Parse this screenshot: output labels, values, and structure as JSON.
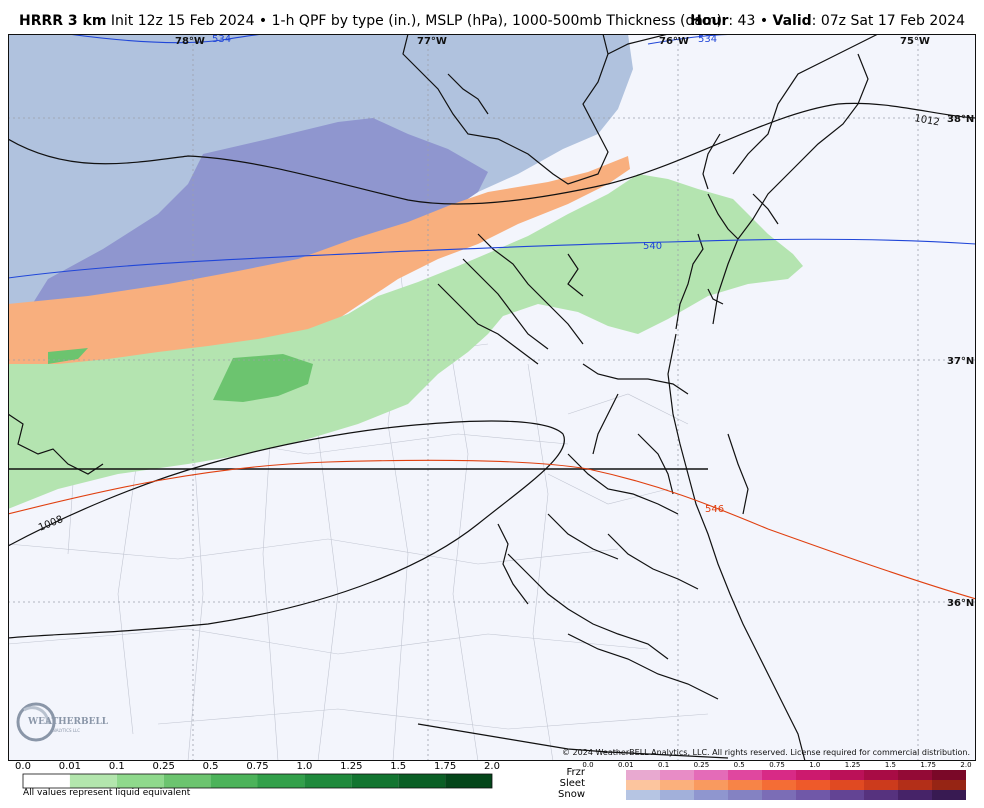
{
  "header": {
    "model": "HRRR 3 km",
    "description": "Init 12z 15 Feb 2024 • 1-h QPF by type (in.), MSLP (hPa), 1000-500mb Thickness (dam)",
    "hour_label": "Hour",
    "hour_value": ": 43 • ",
    "valid_label": "Valid",
    "valid_value": ": 07z Sat 17 Feb 2024"
  },
  "map": {
    "lon_labels": [
      "78°W",
      "77°W",
      "76°W",
      "75°W"
    ],
    "lat_labels": [
      "38°N",
      "37°N",
      "36°N"
    ],
    "isobar_labels": [
      "1012",
      "1008"
    ],
    "thickness_labels": [
      "534",
      "534",
      "540",
      "546"
    ],
    "copyright": "© 2024 WeatherBELL Analytics, LLC. All rights reserved. License required for commercial distribution.",
    "logo_text": "WEATHERBELL",
    "logo_sub": "ANALYTICS LLC"
  },
  "legend": {
    "qpf_ticks": [
      "0.0",
      "0.01",
      "0.1",
      "0.25",
      "0.5",
      "0.75",
      "1.0",
      "1.25",
      "1.5",
      "1.75",
      "2.0"
    ],
    "qpf_colors": [
      "#ffffff",
      "#b3e6ad",
      "#8fd98c",
      "#6cc46f",
      "#4cb35a",
      "#32a04a",
      "#1f8a3c",
      "#127530",
      "#0a5f25",
      "#04461a"
    ],
    "note": "All values represent liquid equivalent",
    "ptype_ticks": [
      "0.0",
      "0.01",
      "0.1",
      "0.25",
      "0.5",
      "0.75",
      "1.0",
      "1.25",
      "1.5",
      "1.75",
      "2.0"
    ],
    "ptype_names": [
      "Frzr",
      "Sleet",
      "Snow"
    ],
    "frzr_colors": [
      "#e8a9d0",
      "#e88cc6",
      "#e46bb8",
      "#e0479f",
      "#d82a86",
      "#cc1a6e",
      "#bb1158",
      "#a80c45",
      "#930a36",
      "#7a0828"
    ],
    "sleet_colors": [
      "#fcc59e",
      "#fbb07c",
      "#f99a5f",
      "#f78447",
      "#f46d35",
      "#ee5a2a",
      "#e04a22",
      "#cc3b1c",
      "#b32f18",
      "#962514"
    ],
    "snow_colors": [
      "#b6c5e3",
      "#a2b0da",
      "#8f96cf",
      "#8482c2",
      "#7b6db6",
      "#7058a8",
      "#634494",
      "#56327e",
      "#462368",
      "#381a52"
    ]
  }
}
